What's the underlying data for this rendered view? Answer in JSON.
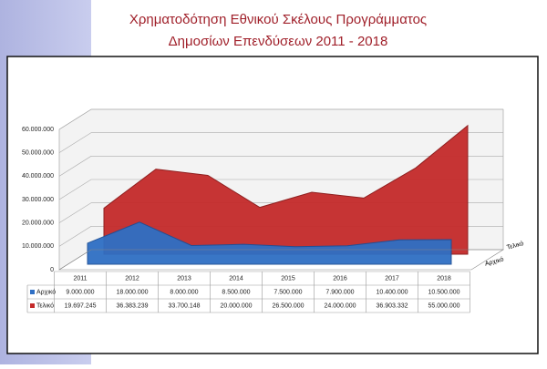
{
  "chart_data": {
    "type": "area",
    "title": "Χρηματοδότηση Εθνικού Σκέλους Προγράμματος",
    "subtitle": "Δημοσίων Επενδύσεων 2011 - 2018",
    "categories": [
      "2011",
      "2012",
      "2013",
      "2014",
      "2015",
      "2016",
      "2017",
      "2018"
    ],
    "series": [
      {
        "name": "Αρχικό",
        "color": "#2f6fc4",
        "values": [
          9000000,
          18000000,
          8000000,
          8500000,
          7500000,
          7900000,
          10400000,
          10500000
        ],
        "value_labels": [
          "9.000.000",
          "18.000.000",
          "8.000.000",
          "8.500.000",
          "7.500.000",
          "7.900.000",
          "10.400.000",
          "10.500.000"
        ]
      },
      {
        "name": "Τελικό",
        "color": "#c42a2a",
        "values": [
          19697245,
          36383239,
          33700148,
          20000000,
          26500000,
          24000000,
          36903332,
          55000000
        ],
        "value_labels": [
          "19.697.245",
          "36.383.239",
          "33.700.148",
          "20.000.000",
          "26.500.000",
          "24.000.000",
          "36.903.332",
          "55.000.000"
        ]
      }
    ],
    "ylim": [
      0,
      60000000
    ],
    "yticks": [
      0,
      {
        "value": 10000000,
        "label": "10.000.000"
      },
      {
        "value": 20000000,
        "label": "20.000.000"
      },
      {
        "value": 30000000,
        "label": "30.000.000"
      },
      {
        "value": 40000000,
        "label": "40.000.000"
      },
      {
        "value": 50000000,
        "label": "50.000.000"
      },
      {
        "value": 60000000,
        "label": "60.000.000"
      }
    ],
    "grid": true
  }
}
